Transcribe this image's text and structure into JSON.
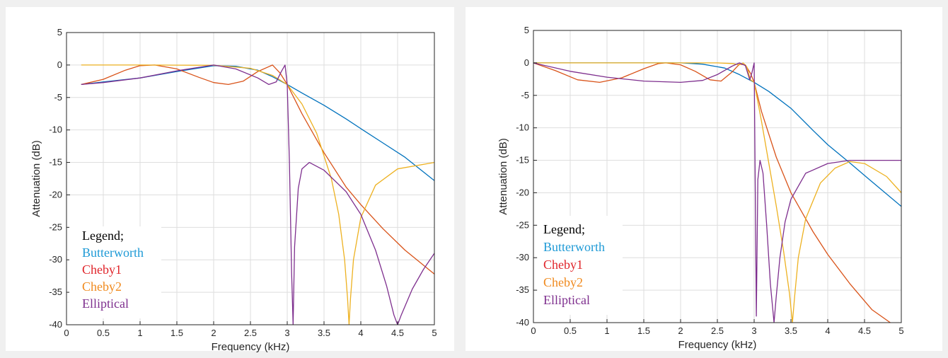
{
  "chart_data": [
    {
      "type": "line",
      "xlabel": "Frequency (kHz)",
      "ylabel": "Attenuation (dB)",
      "xlim": [
        0,
        5
      ],
      "ylim": [
        -40,
        5
      ],
      "xticks": [
        "0",
        "0.5",
        "1",
        "1.5",
        "2",
        "2.5",
        "3",
        "3.5",
        "4",
        "4.5",
        "5"
      ],
      "yticks": [
        "5",
        "0",
        "-5",
        "-10",
        "-15",
        "-20",
        "-25",
        "-30",
        "-35",
        "-40"
      ],
      "grid": true,
      "legend": {
        "title": "Legend;",
        "placement": "bottom-left",
        "entries": [
          {
            "label": "Butterworth",
            "color": "#1e9ad6"
          },
          {
            "label": "Cheby1",
            "color": "#e0242a"
          },
          {
            "label": "Cheby2",
            "color": "#f08a1e"
          },
          {
            "label": "Elliptical",
            "color": "#7e2f8e"
          }
        ]
      },
      "series": [
        {
          "color": "#0072bd",
          "x": [
            0.2,
            0.5,
            1.0,
            1.5,
            2.0,
            2.3,
            2.6,
            2.8,
            3.0,
            3.2,
            3.5,
            3.8,
            4.0,
            4.3,
            4.6,
            5.0
          ],
          "y": [
            -3.0,
            -2.6,
            -2.0,
            -1.0,
            -0.1,
            -0.2,
            -0.8,
            -1.8,
            -3.0,
            -4.3,
            -6.2,
            -8.3,
            -9.8,
            -12.0,
            -14.2,
            -17.8
          ]
        },
        {
          "color": "#d95319",
          "x": [
            0.2,
            0.5,
            0.8,
            1.0,
            1.2,
            1.5,
            1.8,
            2.0,
            2.2,
            2.4,
            2.6,
            2.8,
            2.9,
            3.0,
            3.2,
            3.5,
            3.8,
            4.0,
            4.3,
            4.6,
            5.0
          ],
          "y": [
            -3.0,
            -2.2,
            -0.8,
            -0.1,
            0.0,
            -0.6,
            -1.9,
            -2.7,
            -3.0,
            -2.5,
            -1.0,
            0.0,
            -1.2,
            -3.0,
            -7.5,
            -13.5,
            -18.8,
            -21.5,
            -25.2,
            -28.5,
            -32.2
          ]
        },
        {
          "color": "#edb120",
          "x": [
            0.2,
            1.0,
            2.0,
            2.5,
            2.8,
            3.0,
            3.2,
            3.4,
            3.6,
            3.7,
            3.78,
            3.82,
            3.84,
            3.86,
            3.9,
            4.0,
            4.2,
            4.5,
            5.0
          ],
          "y": [
            0.0,
            0.0,
            -0.05,
            -0.5,
            -1.6,
            -3.0,
            -6.0,
            -10.5,
            -17.5,
            -23.0,
            -30.0,
            -36.0,
            -40.0,
            -36.0,
            -30.0,
            -23.5,
            -18.5,
            -16.0,
            -15.0
          ]
        },
        {
          "color": "#7e2f8e",
          "x": [
            0.2,
            0.5,
            1.0,
            1.5,
            2.0,
            2.3,
            2.6,
            2.75,
            2.85,
            2.92,
            2.97,
            3.0,
            3.03,
            3.06,
            3.08,
            3.1,
            3.15,
            3.2,
            3.3,
            3.5,
            3.8,
            4.0,
            4.2,
            4.35,
            4.45,
            4.5,
            4.55,
            4.7,
            4.85,
            5.0
          ],
          "y": [
            -3.0,
            -2.7,
            -2.0,
            -0.9,
            0.0,
            -0.6,
            -2.0,
            -3.0,
            -2.6,
            -1.0,
            0.0,
            -3.0,
            -15.0,
            -32.0,
            -40.0,
            -28.0,
            -19.0,
            -16.0,
            -15.0,
            -16.2,
            -19.5,
            -23.0,
            -28.5,
            -34.0,
            -38.5,
            -40.0,
            -38.5,
            -34.5,
            -31.5,
            -29.0
          ]
        }
      ]
    },
    {
      "type": "line",
      "xlabel": "Frequency (kHz)",
      "ylabel": "Attenuation (dB)",
      "xlim": [
        0,
        5
      ],
      "ylim": [
        -40,
        5
      ],
      "xticks": [
        "0",
        "0.5",
        "1",
        "1.5",
        "2",
        "2.5",
        "3",
        "3.5",
        "4",
        "4.5",
        "5"
      ],
      "yticks": [
        "5",
        "0",
        "-5",
        "-10",
        "-15",
        "-20",
        "-25",
        "-30",
        "-35",
        "-40"
      ],
      "grid": true,
      "legend": {
        "title": "Legend;",
        "placement": "bottom-left",
        "entries": [
          {
            "label": "Butterworth",
            "color": "#1e9ad6"
          },
          {
            "label": "Cheby1",
            "color": "#e0242a"
          },
          {
            "label": "Cheby2",
            "color": "#f08a1e"
          },
          {
            "label": "Elliptical",
            "color": "#7e2f8e"
          }
        ]
      },
      "series": [
        {
          "color": "#0072bd",
          "x": [
            0.0,
            0.5,
            1.0,
            1.5,
            2.0,
            2.3,
            2.6,
            2.8,
            3.0,
            3.2,
            3.5,
            3.8,
            4.0,
            4.3,
            4.6,
            5.0
          ],
          "y": [
            0.0,
            0.0,
            0.0,
            0.0,
            0.0,
            -0.2,
            -0.8,
            -1.8,
            -3.0,
            -4.4,
            -7.0,
            -10.4,
            -12.6,
            -15.4,
            -18.3,
            -22.1
          ]
        },
        {
          "color": "#d95319",
          "x": [
            0.0,
            0.3,
            0.6,
            0.9,
            1.2,
            1.5,
            1.7,
            1.8,
            2.0,
            2.2,
            2.4,
            2.55,
            2.7,
            2.8,
            2.88,
            2.95,
            3.0,
            3.1,
            3.3,
            3.5,
            3.8,
            4.0,
            4.3,
            4.6,
            4.85
          ],
          "y": [
            0.0,
            -1.2,
            -2.6,
            -3.0,
            -2.3,
            -0.9,
            -0.1,
            0.0,
            -0.3,
            -1.3,
            -2.6,
            -2.8,
            -1.4,
            -0.2,
            -0.3,
            -1.6,
            -3.0,
            -7.5,
            -14.5,
            -20.0,
            -26.0,
            -29.5,
            -34.0,
            -38.0,
            -40.0
          ]
        },
        {
          "color": "#edb120",
          "x": [
            0.0,
            1.0,
            2.0,
            2.5,
            2.7,
            2.8,
            2.85,
            2.9,
            2.95,
            3.0,
            3.1,
            3.2,
            3.3,
            3.4,
            3.48,
            3.52,
            3.55,
            3.6,
            3.7,
            3.9,
            4.1,
            4.3,
            4.5,
            4.8,
            5.0
          ],
          "y": [
            0.0,
            0.0,
            0.0,
            0.0,
            -0.1,
            -0.3,
            0.0,
            -0.6,
            -2.6,
            -3.0,
            -9.0,
            -15.5,
            -22.0,
            -29.0,
            -35.5,
            -40.0,
            -36.0,
            -30.0,
            -24.0,
            -18.5,
            -16.2,
            -15.2,
            -15.5,
            -17.5,
            -20.0
          ]
        },
        {
          "color": "#7e2f8e",
          "x": [
            0.0,
            0.5,
            1.0,
            1.5,
            2.0,
            2.3,
            2.5,
            2.7,
            2.8,
            2.88,
            2.94,
            2.97,
            3.0,
            3.015,
            3.03,
            3.05,
            3.08,
            3.12,
            3.17,
            3.22,
            3.27,
            3.3,
            3.35,
            3.42,
            3.5,
            3.7,
            4.0,
            4.3,
            4.6,
            5.0
          ],
          "y": [
            0.0,
            -1.3,
            -2.2,
            -2.8,
            -3.0,
            -2.7,
            -1.8,
            -0.5,
            0.0,
            -0.4,
            -2.6,
            -1.5,
            0.0,
            -20.0,
            -39.0,
            -18.0,
            -15.0,
            -17.0,
            -25.0,
            -34.0,
            -40.0,
            -36.0,
            -30.0,
            -24.5,
            -21.0,
            -17.0,
            -15.5,
            -15.0,
            -15.0,
            -15.0
          ]
        }
      ]
    }
  ]
}
